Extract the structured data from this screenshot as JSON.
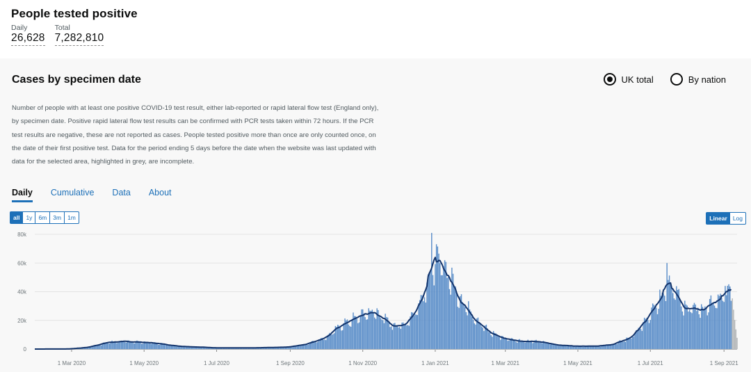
{
  "header": {
    "title": "People tested positive",
    "daily_label": "Daily",
    "daily_value": "26,628",
    "total_label": "Total",
    "total_value": "7,282,810"
  },
  "card": {
    "title": "Cases by specimen date",
    "radio_uk": "UK total",
    "radio_nation": "By nation",
    "selected_radio": "UK total",
    "description": "Number of people with at least one positive COVID-19 test result, either lab-reported or rapid lateral flow test (England only), by specimen date. Positive rapid lateral flow test results can be confirmed with PCR tests taken within 72 hours. If the PCR test results are negative, these are not reported as cases. People tested positive more than once are only counted once, on the date of their first positive test. Data for the period ending 5 days before the date when the website was last updated with data for the selected area, highlighted in grey, are incomplete.",
    "tabs": [
      "Daily",
      "Cumulative",
      "Data",
      "About"
    ],
    "active_tab": "Daily",
    "range_buttons": [
      "all",
      "1y",
      "6m",
      "3m",
      "1m"
    ],
    "active_range": "all",
    "scale_buttons": [
      "Linear",
      "Log"
    ],
    "active_scale": "Linear"
  },
  "colors": {
    "bar": "#5b8ec9",
    "bar_incomplete": "#b1b4b6",
    "average_line": "#12336b",
    "link": "#1d70b8"
  },
  "chart_data": {
    "type": "bar",
    "title": "",
    "xlabel": "",
    "ylabel": "",
    "ylim": [
      0,
      80000
    ],
    "y_ticks": [
      0,
      20000,
      40000,
      60000,
      80000
    ],
    "y_tick_labels": [
      "0",
      "20k",
      "40k",
      "60k",
      "80k"
    ],
    "x_ticks": [
      "2020-03-01",
      "2020-05-01",
      "2020-07-01",
      "2020-09-01",
      "2020-11-01",
      "2021-01-01",
      "2021-03-01",
      "2021-05-01",
      "2021-07-01",
      "2021-09-01"
    ],
    "x_tick_labels": [
      "1 Mar 2020",
      "1 May 2020",
      "1 Jul 2020",
      "1 Sep 2020",
      "1 Nov 2020",
      "1 Jan 2021",
      "1 Mar 2021",
      "1 May 2021",
      "1 Jul 2021",
      "1 Sep 2021"
    ],
    "x_range": [
      "2020-01-30",
      "2021-09-12"
    ],
    "series": [
      {
        "kind": "bars",
        "key_points": [
          [
            "2020-01-30",
            2
          ],
          [
            "2020-02-28",
            80
          ],
          [
            "2020-03-15",
            1200
          ],
          [
            "2020-03-31",
            4500
          ],
          [
            "2020-04-10",
            5200
          ],
          [
            "2020-04-25",
            5000
          ],
          [
            "2020-05-10",
            4200
          ],
          [
            "2020-05-31",
            2000
          ],
          [
            "2020-06-30",
            900
          ],
          [
            "2020-07-31",
            800
          ],
          [
            "2020-08-31",
            1400
          ],
          [
            "2020-09-15",
            3500
          ],
          [
            "2020-10-01",
            8000
          ],
          [
            "2020-10-15",
            17000
          ],
          [
            "2020-11-05",
            25000
          ],
          [
            "2020-11-12",
            25500
          ],
          [
            "2020-11-25",
            17000
          ],
          [
            "2020-12-05",
            16000
          ],
          [
            "2020-12-15",
            25000
          ],
          [
            "2020-12-25",
            45000
          ],
          [
            "2020-12-31",
            58000
          ],
          [
            "2021-01-04",
            61000
          ],
          [
            "2021-01-10",
            55000
          ],
          [
            "2021-01-20",
            38000
          ],
          [
            "2021-01-31",
            25000
          ],
          [
            "2021-02-15",
            12000
          ],
          [
            "2021-02-28",
            7500
          ],
          [
            "2021-03-15",
            5500
          ],
          [
            "2021-03-31",
            5000
          ],
          [
            "2021-04-15",
            2800
          ],
          [
            "2021-04-30",
            2000
          ],
          [
            "2021-05-20",
            2200
          ],
          [
            "2021-05-31",
            3200
          ],
          [
            "2021-06-15",
            8000
          ],
          [
            "2021-06-30",
            22000
          ],
          [
            "2021-07-10",
            35000
          ],
          [
            "2021-07-17",
            47000
          ],
          [
            "2021-07-22",
            42000
          ],
          [
            "2021-07-31",
            28000
          ],
          [
            "2021-08-15",
            28000
          ],
          [
            "2021-08-31",
            34000
          ],
          [
            "2021-09-06",
            39000
          ],
          [
            "2021-09-12",
            28000
          ]
        ],
        "peaks": [
          [
            "2020-12-29",
            81000
          ],
          [
            "2021-07-15",
            60000
          ],
          [
            "2021-09-02",
            44000
          ]
        ],
        "incomplete_from": "2021-09-08"
      },
      {
        "kind": "line",
        "name": "",
        "note": "7-day rolling average"
      }
    ]
  }
}
